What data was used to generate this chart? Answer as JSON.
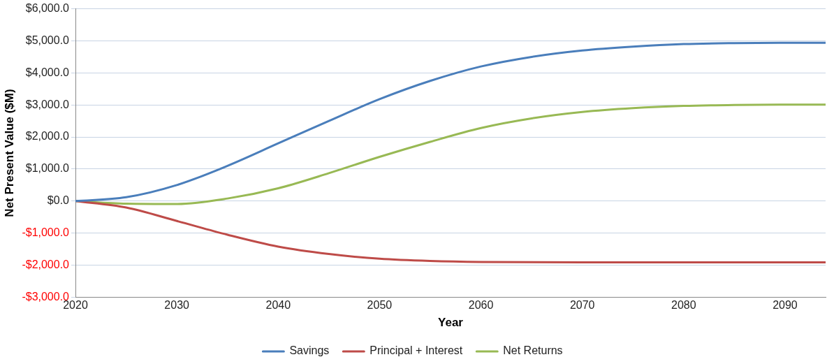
{
  "chart_data": {
    "type": "line",
    "xlabel": "Year",
    "ylabel": "Net Present Value ($M)",
    "xlim": [
      2020,
      2094
    ],
    "xticks": [
      2020,
      2030,
      2040,
      2050,
      2060,
      2070,
      2080,
      2090
    ],
    "ylim": [
      -3000,
      6000
    ],
    "yticks": [
      {
        "value": -3000,
        "label": "-$3,000.0"
      },
      {
        "value": -2000,
        "label": "-$2,000.0"
      },
      {
        "value": -1000,
        "label": "-$1,000.0"
      },
      {
        "value": 0,
        "label": "$0.0"
      },
      {
        "value": 1000,
        "label": "$1,000.0"
      },
      {
        "value": 2000,
        "label": "$2,000.0"
      },
      {
        "value": 3000,
        "label": "$3,000.0"
      },
      {
        "value": 4000,
        "label": "$4,000.0"
      },
      {
        "value": 5000,
        "label": "$5,000.0"
      },
      {
        "value": 6000,
        "label": "$6,000.0"
      }
    ],
    "grid": "y",
    "legend": "bottom",
    "marker": "none",
    "line_style": "solid",
    "series": [
      {
        "name": "Savings",
        "color": "#4a7ebb",
        "x": [
          2020,
          2025,
          2030,
          2035,
          2040,
          2045,
          2050,
          2055,
          2060,
          2065,
          2070,
          2075,
          2080,
          2085,
          2090,
          2094
        ],
        "values": [
          0,
          120,
          500,
          1100,
          1800,
          2500,
          3180,
          3750,
          4200,
          4500,
          4700,
          4820,
          4900,
          4930,
          4940,
          4940
        ]
      },
      {
        "name": "Principal + Interest",
        "color": "#be4b48",
        "x": [
          2020,
          2025,
          2030,
          2035,
          2040,
          2045,
          2050,
          2055,
          2060,
          2070,
          2080,
          2094
        ],
        "values": [
          0,
          -200,
          -620,
          -1050,
          -1420,
          -1650,
          -1800,
          -1870,
          -1900,
          -1910,
          -1910,
          -1910
        ]
      },
      {
        "name": "Net Returns",
        "color": "#98b954",
        "x": [
          2020,
          2025,
          2030,
          2035,
          2040,
          2045,
          2050,
          2055,
          2060,
          2065,
          2070,
          2075,
          2080,
          2085,
          2090,
          2094
        ],
        "values": [
          0,
          -80,
          -90,
          80,
          400,
          870,
          1380,
          1850,
          2280,
          2580,
          2780,
          2900,
          2970,
          3000,
          3010,
          3010
        ]
      }
    ]
  }
}
